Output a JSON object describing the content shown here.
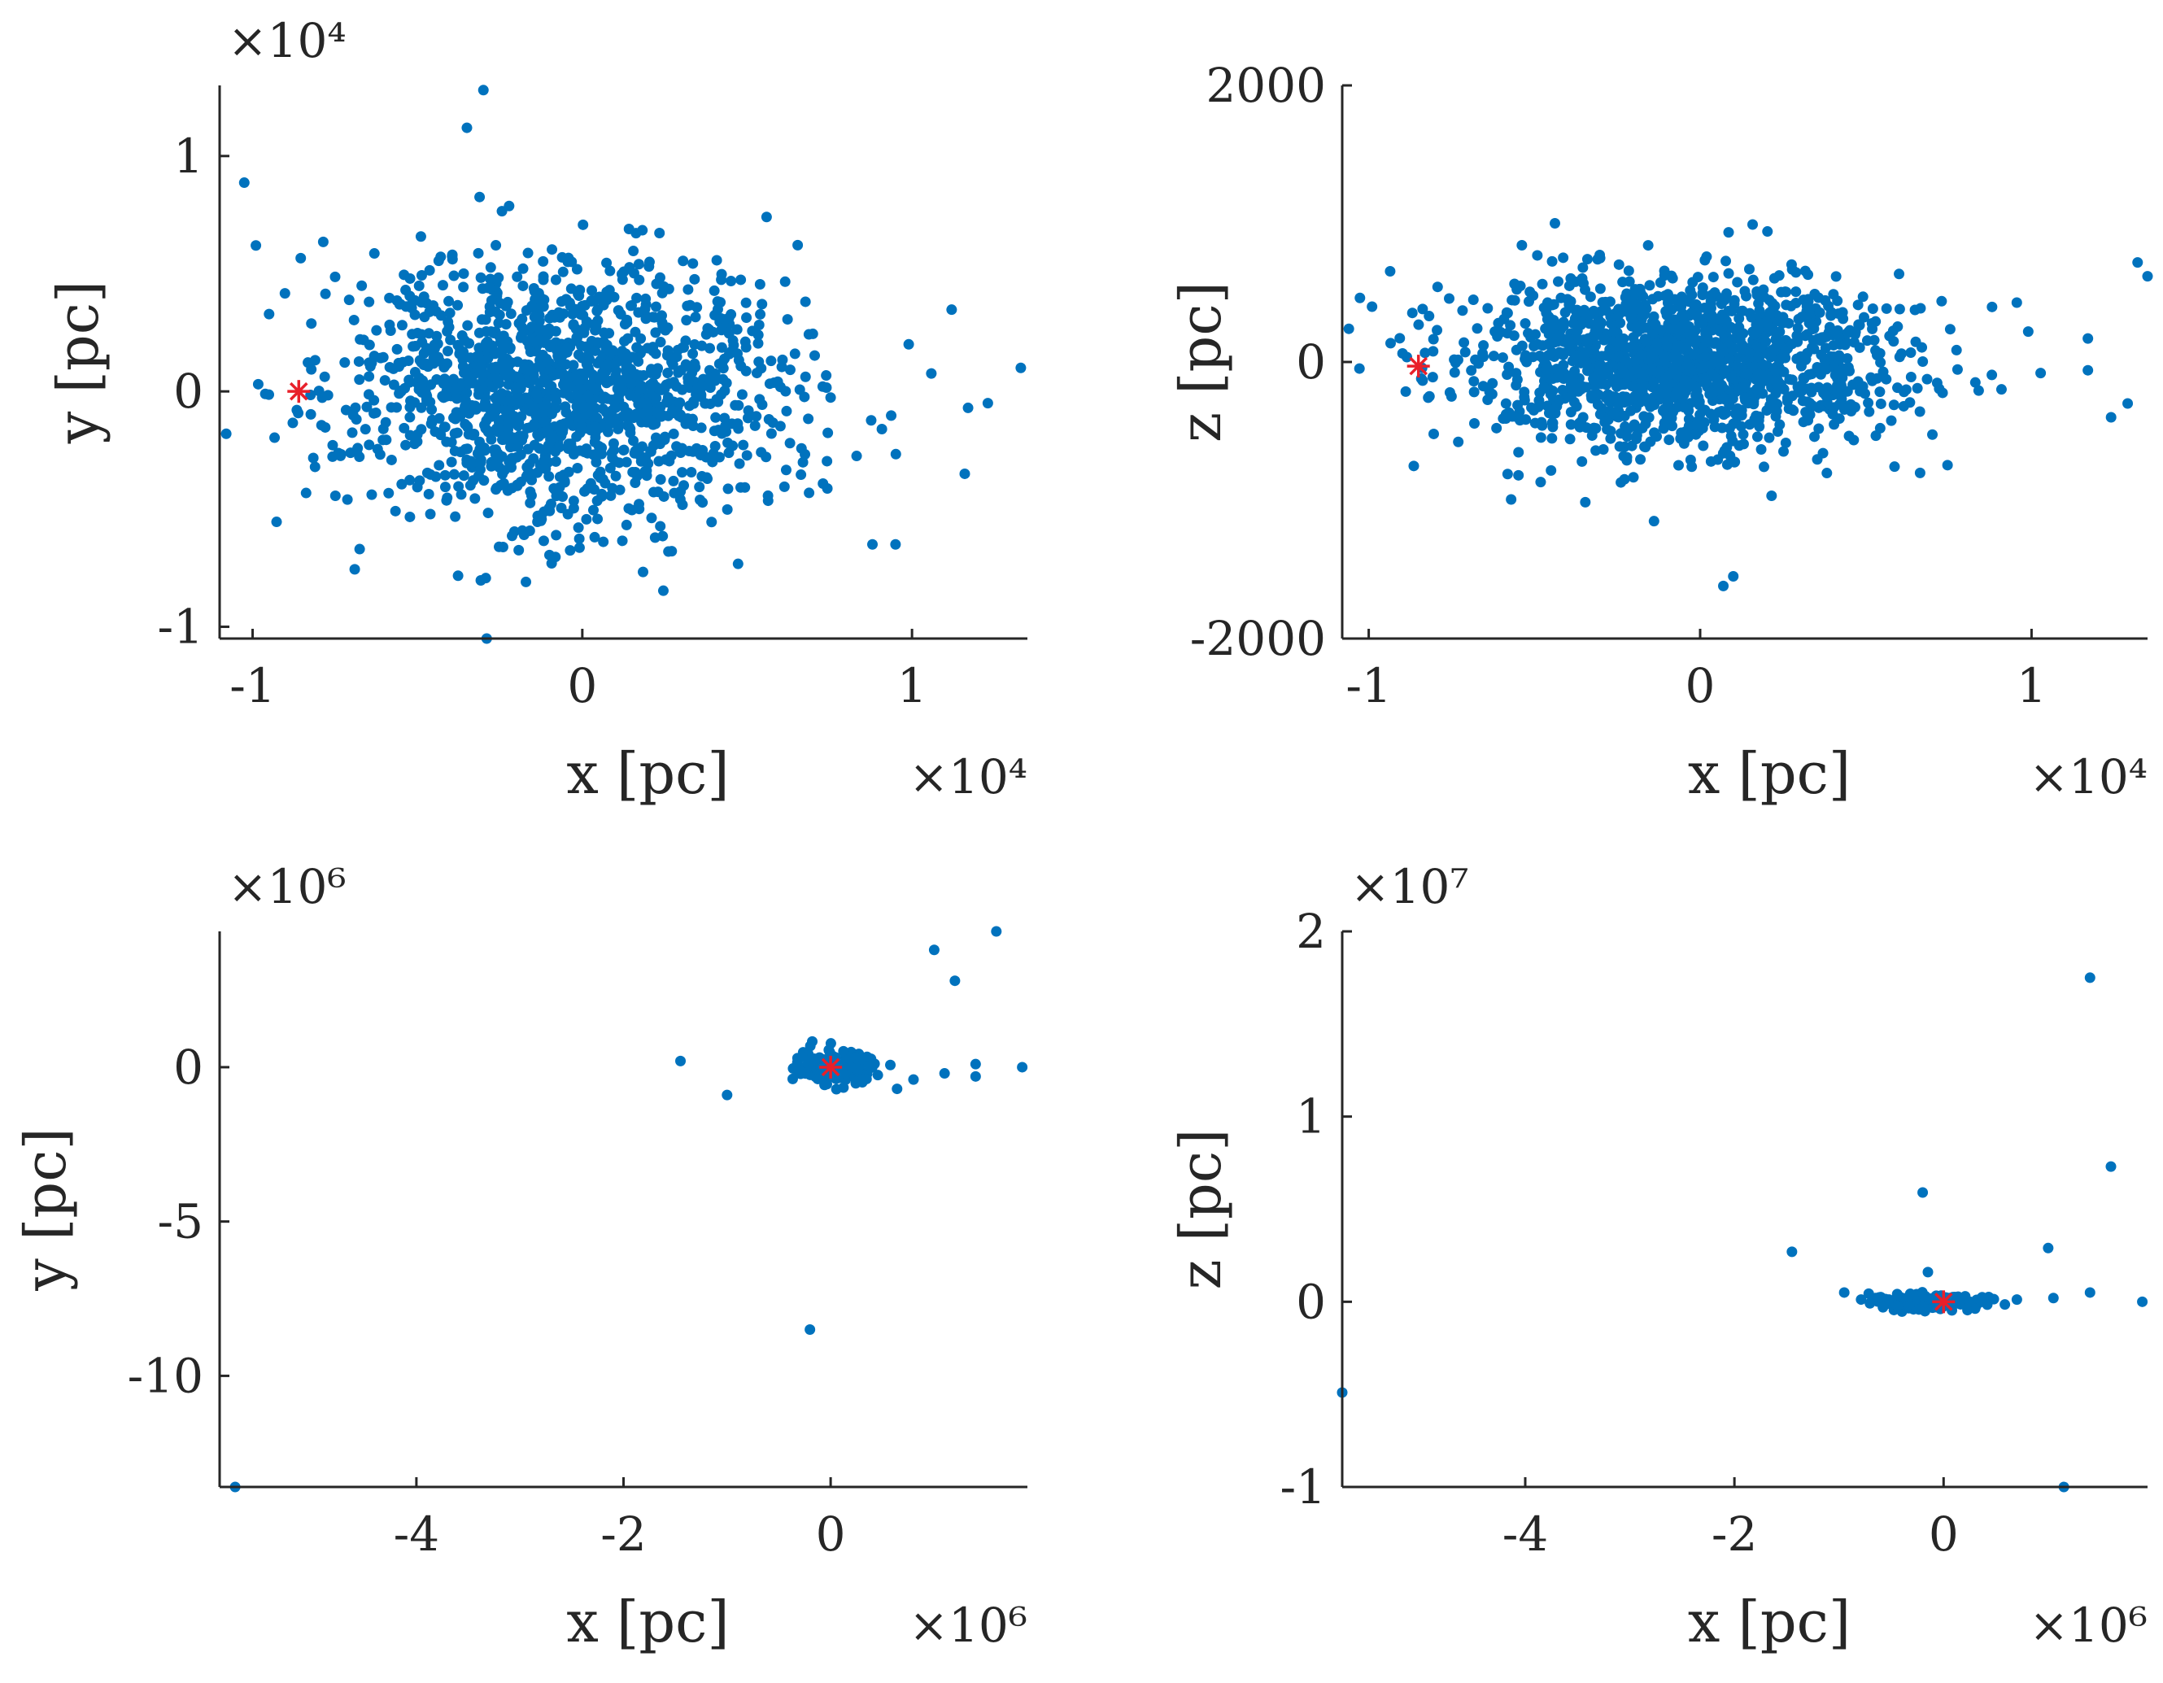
{
  "figure": {
    "layout": "2x2 grid"
  },
  "colors": {
    "marker": "#0072BD",
    "highlight": "#E8202A",
    "axis": "#262626"
  },
  "chart_data": [
    {
      "type": "scatter",
      "panel": "top-left",
      "xlabel": "x [pc]",
      "ylabel": "y [pc]",
      "x_exponent": "×10⁴",
      "y_exponent": "×10⁴",
      "xlim": [
        -1.1,
        1.35
      ],
      "ylim": [
        -1.05,
        1.3
      ],
      "xticks": [
        -1,
        0,
        1
      ],
      "xtick_labels": [
        "-1",
        "0",
        "1"
      ],
      "yticks": [
        -1,
        0,
        1
      ],
      "ytick_labels": [
        "-1",
        "0",
        "1"
      ],
      "highlight_point": {
        "marker": "asterisk",
        "x": -0.86,
        "y": 0
      },
      "distribution": {
        "kind": "dense cloud",
        "center": [
          -0.05,
          0
        ],
        "spread": [
          0.33,
          0.28
        ],
        "count": 1500
      },
      "outliers": [
        [
          1.33,
          0.1
        ],
        [
          1.17,
          -0.07
        ],
        [
          1.23,
          -0.05
        ],
        [
          1.16,
          -0.35
        ],
        [
          0.99,
          0.2
        ],
        [
          -0.3,
          1.28
        ],
        [
          -0.35,
          1.12
        ],
        [
          -0.29,
          -1.05
        ],
        [
          -1.08,
          -0.18
        ],
        [
          -0.99,
          0.62
        ],
        [
          0.88,
          -0.65
        ],
        [
          0.95,
          -0.65
        ]
      ]
    },
    {
      "type": "scatter",
      "panel": "top-right",
      "xlabel": "x [pc]",
      "ylabel": "z [pc]",
      "x_exponent": "×10⁴",
      "y_exponent": "",
      "xlim": [
        -1.08,
        1.35
      ],
      "ylim": [
        -2000,
        2000
      ],
      "xticks": [
        -1,
        0,
        1
      ],
      "xtick_labels": [
        "-1",
        "0",
        "1"
      ],
      "yticks": [
        -2000,
        0,
        2000
      ],
      "ytick_labels": [
        "-2000",
        "0",
        "2000"
      ],
      "highlight_point": {
        "marker": "asterisk",
        "x": -0.85,
        "y": -30
      },
      "distribution": {
        "kind": "dense flattened cloud",
        "center": [
          -0.05,
          0
        ],
        "spread": [
          0.33,
          320
        ],
        "count": 1500
      },
      "outliers": [
        [
          1.32,
          720
        ],
        [
          1.35,
          620
        ],
        [
          1.17,
          170
        ],
        [
          1.17,
          -60
        ],
        [
          1.24,
          -400
        ],
        [
          1.29,
          -300
        ],
        [
          0.99,
          220
        ],
        [
          0.07,
          -1620
        ],
        [
          0.1,
          -1550
        ],
        [
          -1.06,
          240
        ],
        [
          -0.99,
          400
        ]
      ]
    },
    {
      "type": "scatter",
      "panel": "bottom-left",
      "xlabel": "x [pc]",
      "ylabel": "y [pc]",
      "x_exponent": "×10⁶",
      "y_exponent": "×10⁶",
      "xlim": [
        -5.9,
        1.9
      ],
      "ylim": [
        -13.6,
        4.4
      ],
      "xticks": [
        -4,
        -2,
        0
      ],
      "xtick_labels": [
        "-4",
        "-2",
        "0"
      ],
      "yticks": [
        -10,
        -5,
        0
      ],
      "ytick_labels": [
        "-10",
        "-5",
        "0"
      ],
      "highlight_point": {
        "marker": "asterisk",
        "x": 0,
        "y": 0
      },
      "distribution": {
        "kind": "compact elongated cluster",
        "center": [
          0.05,
          0
        ],
        "spread": [
          0.22,
          0.25
        ],
        "count": 160
      },
      "outliers": [
        [
          1.6,
          4.4
        ],
        [
          1.0,
          3.8
        ],
        [
          1.2,
          2.8
        ],
        [
          -1.45,
          0.2
        ],
        [
          -1.0,
          -0.9
        ],
        [
          -0.2,
          -8.5
        ],
        [
          -5.75,
          -13.6
        ],
        [
          1.85,
          0
        ],
        [
          1.4,
          0.1
        ],
        [
          1.4,
          -0.3
        ],
        [
          1.1,
          -0.2
        ],
        [
          0.8,
          -0.4
        ]
      ]
    },
    {
      "type": "scatter",
      "panel": "bottom-right",
      "xlabel": "x [pc]",
      "ylabel": "z [pc]",
      "x_exponent": "×10⁶",
      "y_exponent": "×10⁷",
      "xlim": [
        -5.75,
        1.95
      ],
      "ylim": [
        -1,
        2
      ],
      "xticks": [
        -4,
        -2,
        0
      ],
      "xtick_labels": [
        "-4",
        "-2",
        "0"
      ],
      "yticks": [
        -1,
        0,
        1,
        2
      ],
      "ytick_labels": [
        "-1",
        "0",
        "1",
        "2"
      ],
      "highlight_point": {
        "marker": "asterisk",
        "x": 0,
        "y": 0
      },
      "distribution": {
        "kind": "flat elongated cluster",
        "center": [
          -0.1,
          0
        ],
        "spread": [
          0.28,
          0.02
        ],
        "count": 160
      },
      "outliers": [
        [
          1.4,
          1.75
        ],
        [
          1.6,
          0.73
        ],
        [
          -0.2,
          0.59
        ],
        [
          1.0,
          0.29
        ],
        [
          -1.45,
          0.27
        ],
        [
          -5.75,
          -0.49
        ],
        [
          1.15,
          -1.0
        ],
        [
          1.9,
          0
        ],
        [
          1.4,
          0.05
        ],
        [
          1.05,
          0.02
        ],
        [
          -0.95,
          0.05
        ],
        [
          -0.15,
          0.16
        ]
      ]
    }
  ]
}
